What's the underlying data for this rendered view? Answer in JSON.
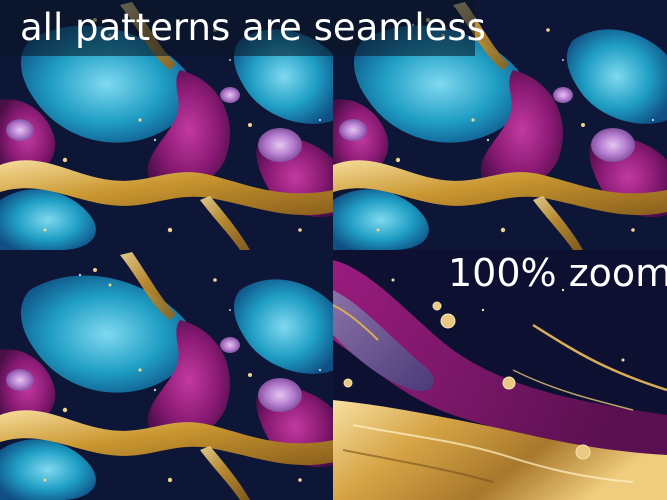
{
  "caption": {
    "text": "all patterns are seamless"
  },
  "zoom_panel": {
    "label": "100% zoom"
  },
  "colors": {
    "navy": "#0b1230",
    "teal": "#1f9ec4",
    "light_teal": "#6fd0ea",
    "magenta": "#8e1a78",
    "violet": "#b24fb0",
    "gold": "#d4a546",
    "light_gold": "#f2d189"
  }
}
